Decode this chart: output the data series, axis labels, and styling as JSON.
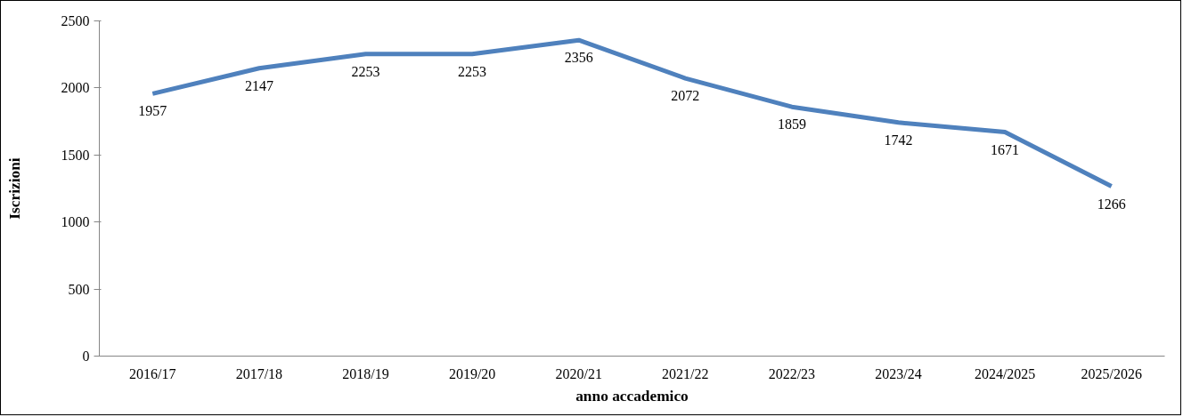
{
  "chart_data": {
    "type": "line",
    "xlabel": "anno accademico",
    "ylabel": "Iscrizioni",
    "categories": [
      "2016/17",
      "2017/18",
      "2018/19",
      "2019/20",
      "2020/21",
      "2021/22",
      "2022/23",
      "2023/24",
      "2024/2025",
      "2025/2026"
    ],
    "series": [
      {
        "color": "#4f81bd",
        "values": [
          1957,
          2147,
          2253,
          2253,
          2356,
          2072,
          1859,
          1742,
          1671,
          1266
        ]
      }
    ],
    "ylim": [
      0,
      2500
    ],
    "yticks": [
      0,
      500,
      1000,
      1500,
      2000,
      2500
    ],
    "grid": false,
    "marker": "none",
    "line_style": "solid",
    "data_labels": true
  }
}
